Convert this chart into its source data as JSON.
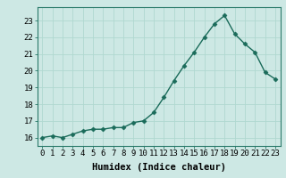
{
  "x": [
    0,
    1,
    2,
    3,
    4,
    5,
    6,
    7,
    8,
    9,
    10,
    11,
    12,
    13,
    14,
    15,
    16,
    17,
    18,
    19,
    20,
    21,
    22,
    23
  ],
  "y": [
    16.0,
    16.1,
    16.0,
    16.2,
    16.4,
    16.5,
    16.5,
    16.6,
    16.6,
    16.9,
    17.0,
    17.5,
    18.4,
    19.4,
    20.3,
    21.1,
    22.0,
    22.8,
    23.3,
    22.2,
    21.6,
    21.1,
    19.9,
    19.5
  ],
  "line_color": "#1a6b5a",
  "marker": "D",
  "marker_size": 2.5,
  "background_color": "#cde8e4",
  "grid_color": "#b0d8d0",
  "xlabel": "Humidex (Indice chaleur)",
  "xlabel_fontsize": 7.5,
  "ylim": [
    15.5,
    23.8
  ],
  "xlim": [
    -0.5,
    23.5
  ],
  "yticks": [
    16,
    17,
    18,
    19,
    20,
    21,
    22,
    23
  ],
  "xticks": [
    0,
    1,
    2,
    3,
    4,
    5,
    6,
    7,
    8,
    9,
    10,
    11,
    12,
    13,
    14,
    15,
    16,
    17,
    18,
    19,
    20,
    21,
    22,
    23
  ],
  "tick_fontsize": 6.5,
  "line_width": 1.0
}
